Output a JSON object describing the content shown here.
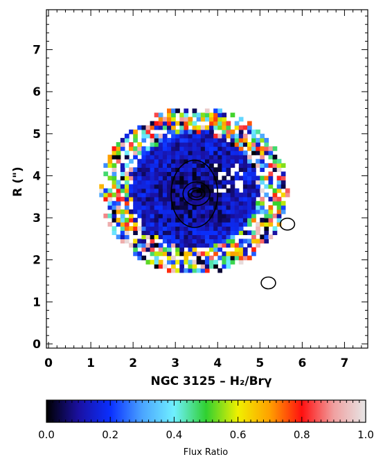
{
  "chart_data": [
    {
      "type": "heatmap",
      "title": "",
      "xlabel": "NGC 3125 – H₂/Brγ",
      "ylabel": "R (\")",
      "xlim": [
        -0.05,
        7.55
      ],
      "ylim": [
        -0.1,
        7.95
      ],
      "x_ticks": [
        "0",
        "1",
        "2",
        "3",
        "4",
        "5",
        "6",
        "7"
      ],
      "y_ticks": [
        "0",
        "1",
        "2",
        "3",
        "4",
        "5",
        "6",
        "7"
      ],
      "grid": false,
      "description_of_values": "Pixel map of flux ratio; dense blue core (ratio ~0.1-0.2) centred near x=3.4, y=3.6 with mixed colour noisy pixels around the edges",
      "core_center": [
        3.4,
        3.6
      ],
      "core_value": 0.15,
      "contours": [
        {
          "center": [
            3.45,
            3.57
          ],
          "level": "outer"
        },
        {
          "center": [
            3.5,
            3.57
          ],
          "level": "mid"
        },
        {
          "center": [
            3.5,
            3.57
          ],
          "level": "inner"
        },
        {
          "center": [
            5.65,
            2.85
          ],
          "level": "outer"
        },
        {
          "center": [
            5.2,
            1.45
          ],
          "level": "outer"
        }
      ]
    },
    {
      "type": "colorbar",
      "label": "Flux Ratio",
      "range": [
        0.0,
        1.0
      ],
      "tick_labels": [
        "0.0",
        "0.2",
        "0.4",
        "0.6",
        "0.8",
        "1.0"
      ],
      "colormap_stops": [
        "#000000",
        "#1a10a0",
        "#0a30ff",
        "#4aa4ff",
        "#70f0ff",
        "#30d030",
        "#f0f000",
        "#ffa000",
        "#ff1010",
        "#f0a0a0",
        "#e6e6e6"
      ]
    }
  ]
}
